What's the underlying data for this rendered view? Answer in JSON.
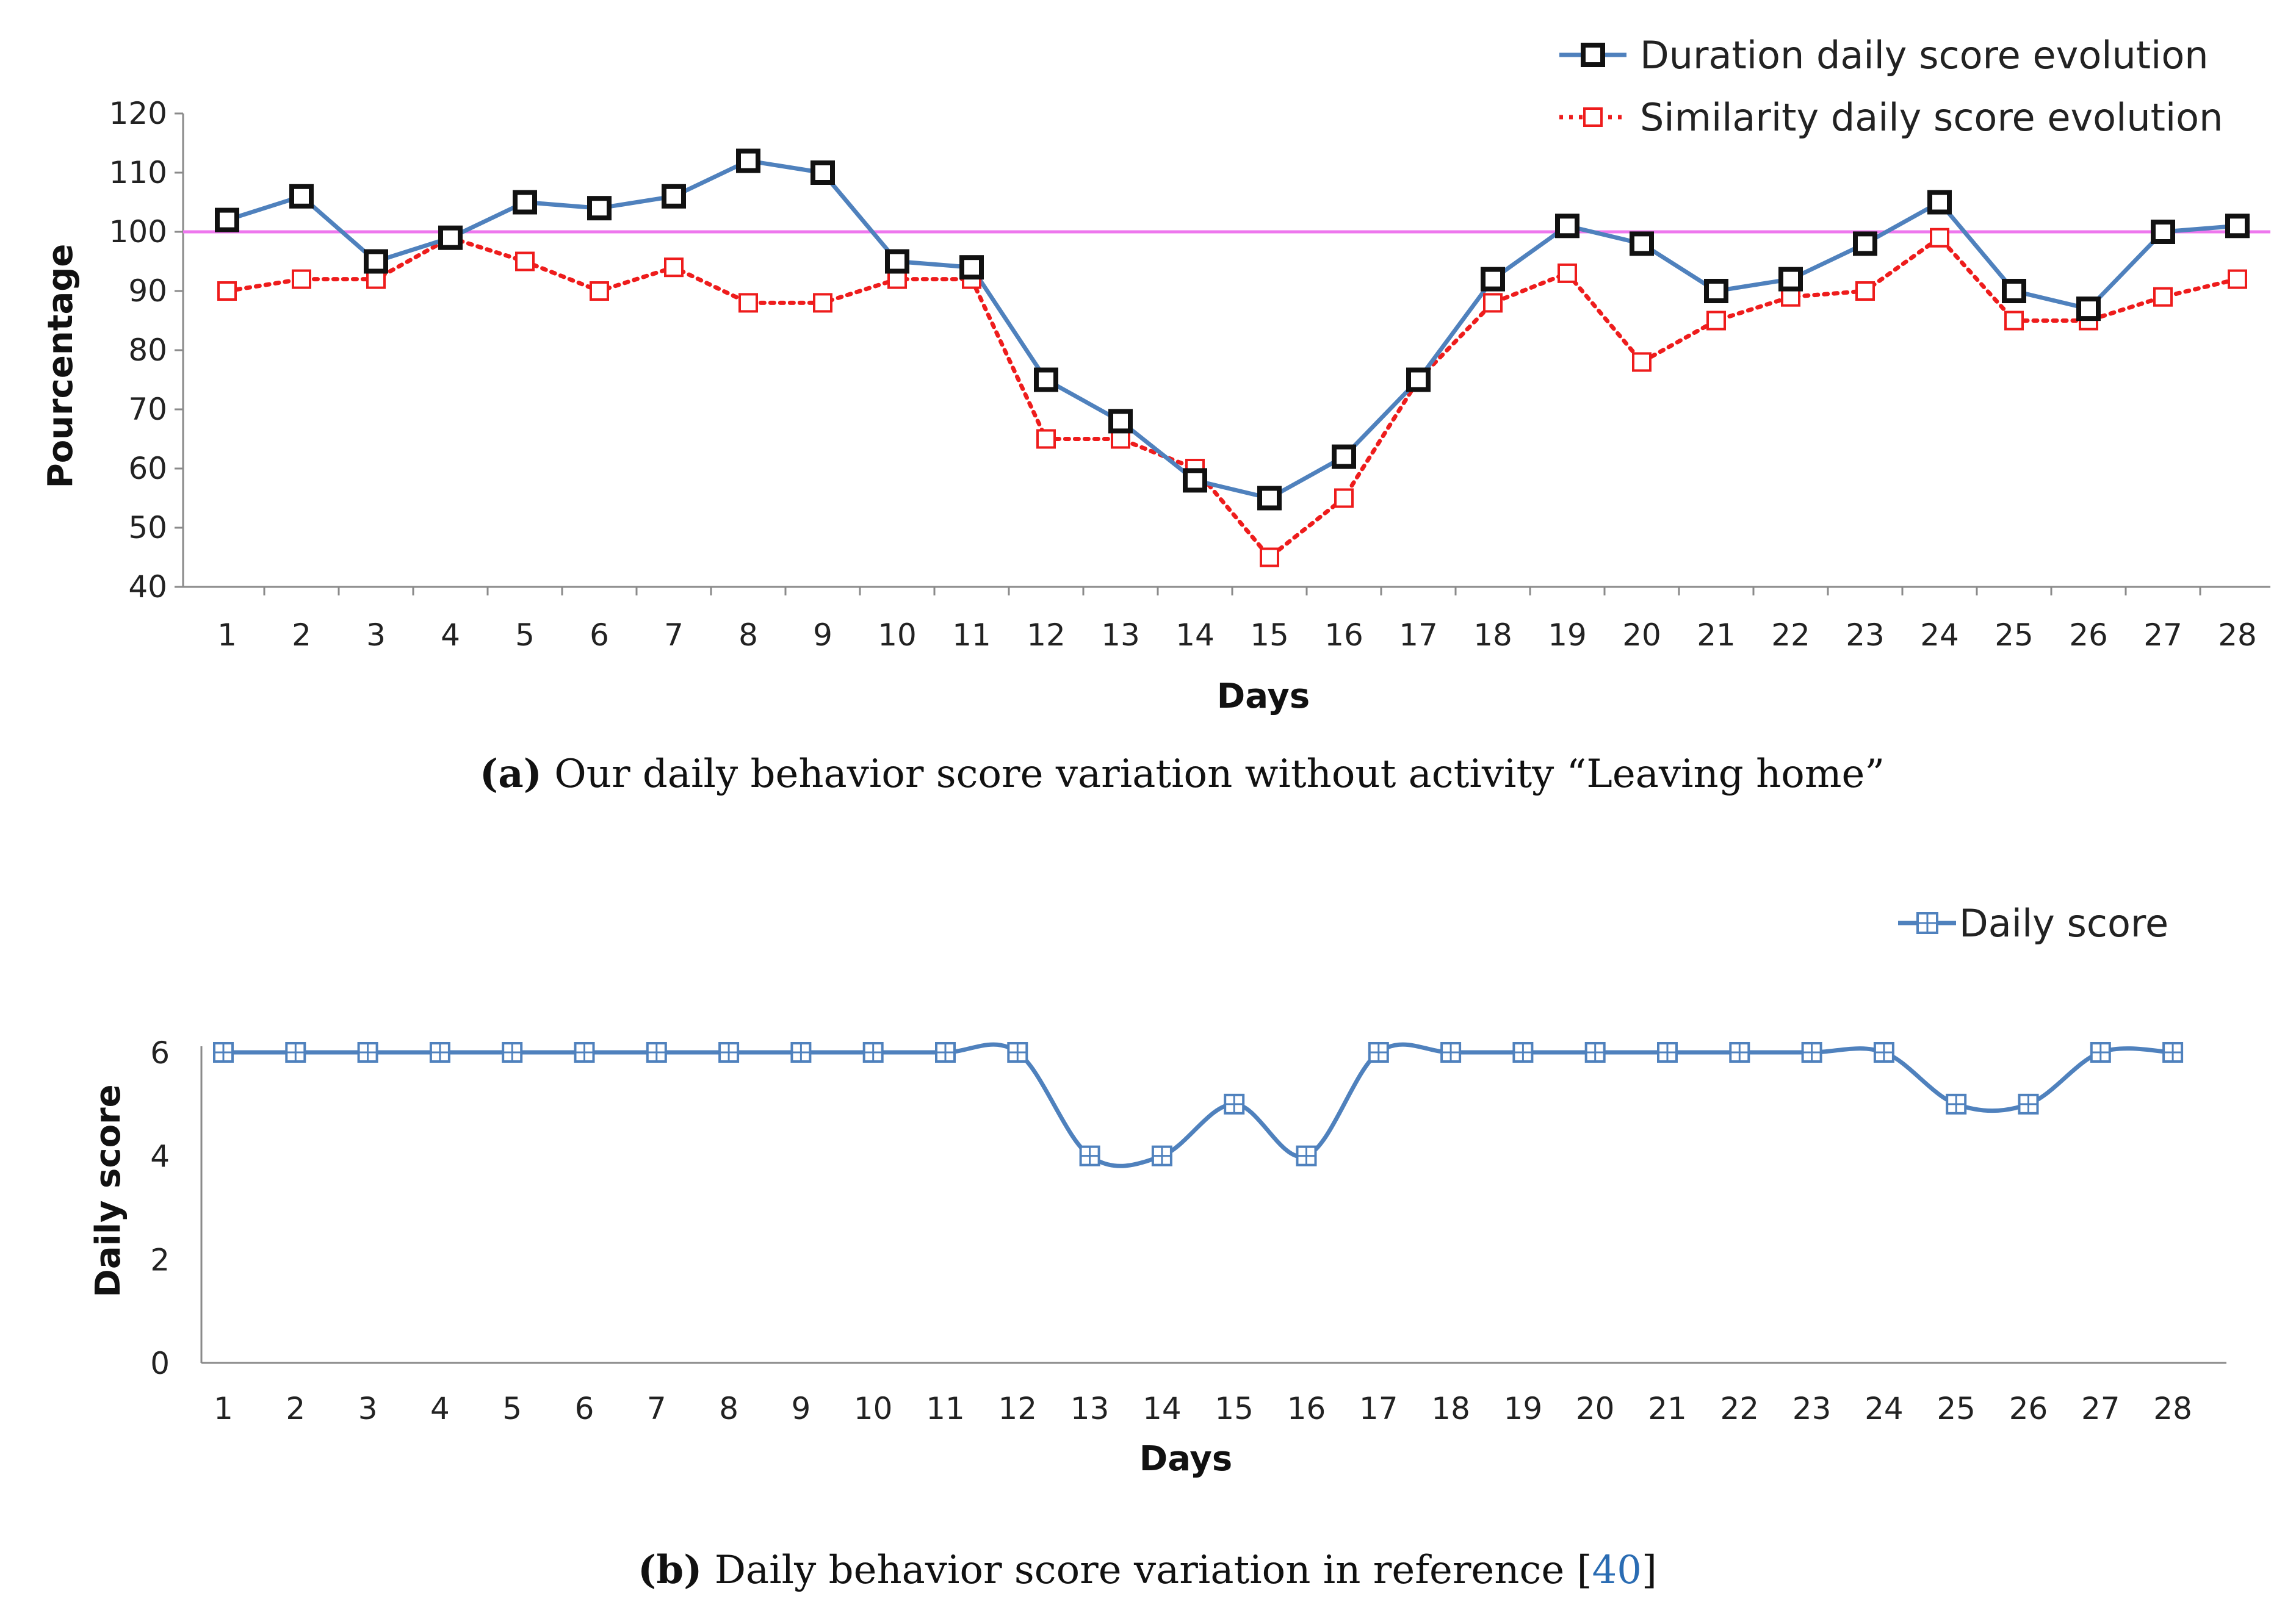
{
  "chart_data": [
    {
      "type": "line",
      "xlabel": "Days",
      "ylabel": "Pourcentage",
      "ylim": [
        40,
        120
      ],
      "yticks": [
        40,
        50,
        60,
        70,
        80,
        90,
        100,
        110,
        120
      ],
      "categories": [
        "1",
        "2",
        "3",
        "4",
        "5",
        "6",
        "7",
        "8",
        "9",
        "10",
        "11",
        "12",
        "13",
        "14",
        "15",
        "16",
        "17",
        "18",
        "19",
        "20",
        "21",
        "22",
        "23",
        "24",
        "25",
        "26",
        "27",
        "28"
      ],
      "reference_line": {
        "value": 100,
        "color": "#ee77ee"
      },
      "series": [
        {
          "name": "Duration daily score evolution",
          "color": "#4f81bd",
          "values": [
            102,
            106,
            95,
            99,
            105,
            104,
            106,
            112,
            110,
            95,
            94,
            75,
            68,
            58,
            55,
            62,
            75,
            92,
            101,
            98,
            90,
            92,
            98,
            105,
            90,
            87,
            100,
            101
          ]
        },
        {
          "name": "Similarity daily score evolution",
          "color": "#ee1c1c",
          "values": [
            90,
            92,
            92,
            99,
            95,
            90,
            94,
            88,
            88,
            92,
            92,
            65,
            65,
            60,
            45,
            55,
            75,
            88,
            93,
            78,
            85,
            89,
            90,
            99,
            85,
            85,
            89,
            92
          ]
        }
      ],
      "caption_label": "(a)",
      "caption_text": " Our daily behavior score variation without activity “Leaving home”"
    },
    {
      "type": "line",
      "xlabel": "Days",
      "ylabel": "Daily score",
      "ylim": [
        0,
        6
      ],
      "yticks": [
        0,
        2,
        4,
        6
      ],
      "categories": [
        "1",
        "2",
        "3",
        "4",
        "5",
        "6",
        "7",
        "8",
        "9",
        "10",
        "11",
        "12",
        "13",
        "14",
        "15",
        "16",
        "17",
        "18",
        "19",
        "20",
        "21",
        "22",
        "23",
        "24",
        "25",
        "26",
        "27",
        "28"
      ],
      "series": [
        {
          "name": "Daily score",
          "color": "#4f81bd",
          "values": [
            6,
            6,
            6,
            6,
            6,
            6,
            6,
            6,
            6,
            6,
            6,
            6,
            4,
            4,
            5,
            4,
            6,
            6,
            6,
            6,
            6,
            6,
            6,
            6,
            5,
            5,
            6,
            6
          ]
        }
      ],
      "caption_label": "(b)",
      "caption_text": " Daily behavior score variation in reference [",
      "caption_ref": "40",
      "caption_end": "]"
    }
  ]
}
